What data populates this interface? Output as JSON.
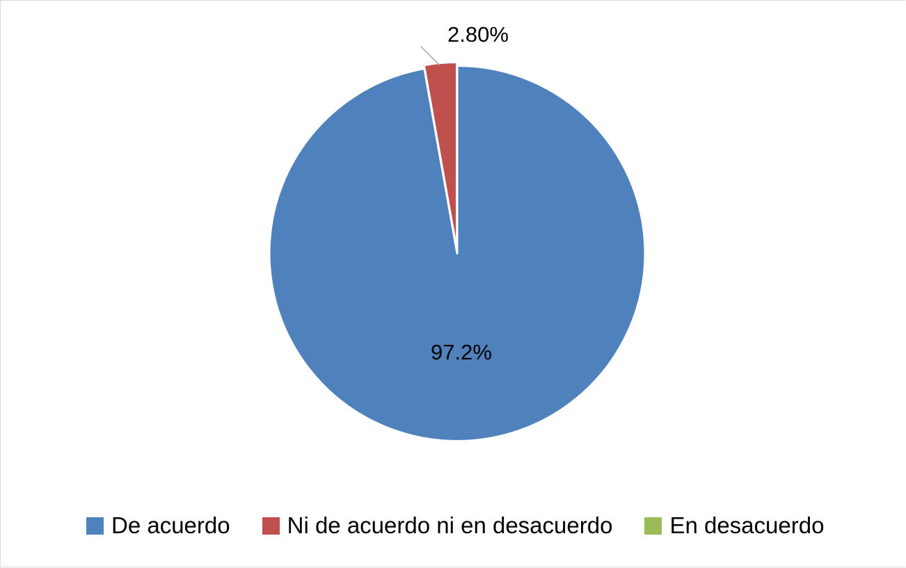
{
  "chart_data": {
    "type": "pie",
    "title": "",
    "categories": [
      "De acuerdo",
      "Ni de acuerdo ni en desacuerdo",
      "En desacuerdo"
    ],
    "values": [
      97.2,
      2.8,
      0
    ],
    "data_labels": [
      "97.2%",
      "2.80%",
      ""
    ],
    "colors": [
      "#4f81bd",
      "#c0504d",
      "#9bbb59"
    ],
    "legend_position": "bottom",
    "start_angle_deg": 0,
    "exploded_slice": "Ni de acuerdo ni en desacuerdo"
  },
  "labels": {
    "slice_0": "97.2%",
    "slice_1": "2.80%"
  },
  "legend": {
    "items": [
      {
        "label": "De acuerdo",
        "color": "#4f81bd"
      },
      {
        "label": "Ni de acuerdo ni en desacuerdo",
        "color": "#c0504d"
      },
      {
        "label": "En desacuerdo",
        "color": "#9bbb59"
      }
    ]
  }
}
